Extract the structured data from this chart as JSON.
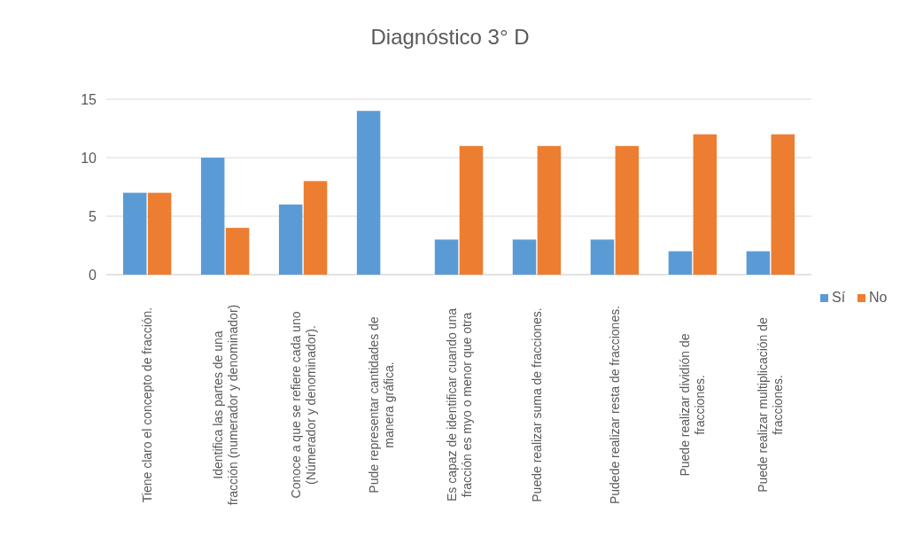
{
  "chart_data": {
    "type": "bar",
    "title": "Diagnóstico 3° D",
    "categories": [
      "Tiene claro el concepto de fracción.",
      "Identifica las partes de una fracción (numerador y denominador)",
      "Conoce a que se refiere cada uno (Númerador y denominador).",
      "Pude representar cantidades de manera gráfica.",
      "Es capaz de identificar cuando una fracción es myo o menor que otra",
      "Puede realizar suma de fracciones.",
      "Pudede realizar resta de fracciones.",
      "Puede realizar dividión de fracciones.",
      "Puede realizar multiplicación de fracciones."
    ],
    "series": [
      {
        "name": "Sí",
        "color": "#5b9bd5",
        "values": [
          7,
          10,
          6,
          14,
          3,
          3,
          3,
          2,
          2
        ]
      },
      {
        "name": "No",
        "color": "#ed7d31",
        "values": [
          7,
          4,
          8,
          0,
          11,
          11,
          11,
          12,
          12
        ]
      }
    ],
    "ylim": [
      0,
      15
    ],
    "yticks": [
      0,
      5,
      10,
      15
    ],
    "grid": "y",
    "legend": "right"
  }
}
